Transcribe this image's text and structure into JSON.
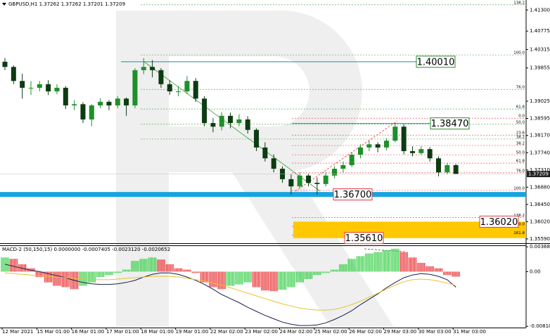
{
  "chart_data": [
    {
      "type": "candlestick",
      "title": "GBPUSD,H1  1.37262 1.37262 1.37201 1.37209",
      "categories": [
        "12 Mar 2021",
        null,
        null,
        null,
        "15 Mar 01:00",
        null,
        null,
        null,
        "16 Mar 01:00",
        null,
        null,
        null,
        "17 Mar 01:00",
        null,
        null,
        null,
        "18 Mar 01:00",
        null,
        null,
        null,
        "19 Mar 01:00",
        null,
        null,
        null,
        "22 Mar 02:00",
        null,
        null,
        null,
        "23 Mar 02:00",
        null,
        null,
        null,
        "24 Mar 02:00",
        null,
        null,
        null,
        "25 Mar 02:00",
        null,
        null,
        null,
        "26 Mar 02:00",
        null,
        null,
        null,
        "29 Mar 03:00",
        null,
        null,
        null,
        "30 Mar 03:00",
        null,
        null,
        null,
        "31 Mar 03:00"
      ],
      "open": [
        1.4001,
        1.3988,
        1.3953,
        1.3936,
        1.3936,
        1.3945,
        1.3927,
        1.3936,
        1.3892,
        1.3895,
        1.3857,
        1.3892,
        1.3901,
        1.3892,
        1.3909,
        1.3892,
        1.398,
        1.3988,
        1.398,
        1.3945,
        1.3927,
        1.3927,
        1.3953,
        1.3909,
        1.3848,
        1.3839,
        1.3866,
        1.3848,
        1.3857,
        1.3831,
        1.3787,
        1.376,
        1.3734,
        1.3708,
        1.369,
        1.3717,
        1.3699,
        1.3696,
        1.3717,
        1.3734,
        1.3743,
        1.3769,
        1.3787,
        1.3795,
        1.3787,
        1.3804,
        1.3839,
        1.3778,
        1.3773,
        1.3783,
        1.376,
        1.3725,
        1.3743
      ],
      "high": [
        1.401,
        1.3992,
        1.3971,
        1.3953,
        1.3953,
        1.3955,
        1.3945,
        1.394,
        1.3905,
        1.39,
        1.3895,
        1.391,
        1.3905,
        1.3915,
        1.3912,
        1.3985,
        1.401,
        1.4005,
        1.3985,
        1.3955,
        1.394,
        1.3965,
        1.396,
        1.3915,
        1.386,
        1.3875,
        1.3874,
        1.387,
        1.3865,
        1.3835,
        1.38,
        1.377,
        1.374,
        1.372,
        1.3725,
        1.3722,
        1.3712,
        1.3725,
        1.374,
        1.3752,
        1.3775,
        1.3795,
        1.3804,
        1.38,
        1.381,
        1.3848,
        1.3845,
        1.379,
        1.379,
        1.3788,
        1.3765,
        1.3748,
        1.3746
      ],
      "low": [
        1.398,
        1.3945,
        1.3909,
        1.3918,
        1.3927,
        1.3918,
        1.392,
        1.3883,
        1.388,
        1.3848,
        1.384,
        1.3885,
        1.388,
        1.3885,
        1.3866,
        1.3885,
        1.397,
        1.3962,
        1.3936,
        1.3918,
        1.3915,
        1.392,
        1.3901,
        1.384,
        1.3825,
        1.383,
        1.3835,
        1.384,
        1.3822,
        1.3778,
        1.3752,
        1.3725,
        1.3699,
        1.367,
        1.3685,
        1.369,
        1.367,
        1.369,
        1.371,
        1.3725,
        1.3738,
        1.376,
        1.3778,
        1.3775,
        1.378,
        1.38,
        1.377,
        1.3765,
        1.3768,
        1.3752,
        1.3715,
        1.372,
        1.37201
      ],
      "close": [
        1.3988,
        1.3953,
        1.3936,
        1.3936,
        1.3945,
        1.3927,
        1.3936,
        1.3892,
        1.3895,
        1.3857,
        1.3892,
        1.3901,
        1.3892,
        1.3909,
        1.3892,
        1.398,
        1.3988,
        1.398,
        1.3945,
        1.3927,
        1.3927,
        1.3953,
        1.3909,
        1.3848,
        1.3839,
        1.3866,
        1.3848,
        1.3857,
        1.3831,
        1.3787,
        1.376,
        1.3734,
        1.3708,
        1.369,
        1.3717,
        1.3699,
        1.3696,
        1.3717,
        1.3734,
        1.3743,
        1.3769,
        1.3787,
        1.3795,
        1.3787,
        1.3804,
        1.3839,
        1.3778,
        1.3773,
        1.3783,
        1.376,
        1.3725,
        1.3743,
        1.37209
      ],
      "up_color": "#1f8f2a",
      "down_color": "#0d3b12",
      "ylim": [
        1.355,
        1.4155
      ],
      "yticks": [
        {
          "value": 1.413,
          "label": "1.41300"
        },
        {
          "value": 1.40775,
          "label": "1.40775"
        },
        {
          "value": 1.40315,
          "label": "1.40315"
        },
        {
          "value": 1.39855,
          "label": "1.39855"
        },
        {
          "value": 1.39025,
          "label": "1.39025"
        },
        {
          "value": 1.38595,
          "label": "1.38595"
        },
        {
          "value": 1.3817,
          "label": "1.38170"
        },
        {
          "value": 1.3774,
          "label": "1.37740"
        },
        {
          "value": 1.3731,
          "label": "1.37310"
        },
        {
          "value": 1.3688,
          "label": "1.36880"
        },
        {
          "value": 1.3645,
          "label": "1.36450"
        },
        {
          "value": 1.3602,
          "label": "1.36020"
        },
        {
          "value": 1.3559,
          "label": "1.35590"
        }
      ],
      "last_price": 1.37209,
      "fib_levels": [
        {
          "color": "#3c9a3c",
          "levels": [
            {
              "label": "138.2",
              "value": 1.4143
            },
            {
              "label": "100.0",
              "value": 1.4018
            },
            {
              "label": "76.0",
              "value": 1.3932
            },
            {
              "label": "61.8",
              "value": 1.3883
            },
            {
              "label": "50.0",
              "value": 1.3845
            },
            {
              "label": "38.2",
              "value": 1.3808
            }
          ]
        },
        {
          "color": "#e0393e",
          "levels": [
            {
              "label": "0.0",
              "value": 1.386
            },
            {
              "label": "23.6",
              "value": 1.3818
            },
            {
              "label": "38.2",
              "value": 1.3792
            },
            {
              "label": "50.0",
              "value": 1.3769
            },
            {
              "label": "61.8",
              "value": 1.3748
            },
            {
              "label": "76.0",
              "value": 1.3724
            },
            {
              "label": "100.0",
              "value": 1.368
            },
            {
              "label": "138.2",
              "value": 1.3612
            },
            {
              "label": "150.0",
              "value": 1.359
            },
            {
              "label": "161.8",
              "value": 1.3568
            }
          ]
        }
      ],
      "price_labels": [
        {
          "label": "1.40010",
          "value": 1.4001,
          "color": "#2e8b2e"
        },
        {
          "label": "1.38470",
          "value": 1.3847,
          "color": "#2e8b2e"
        },
        {
          "label": "1.36700",
          "value": 1.367,
          "color": "#e0393e"
        },
        {
          "label": "1.36020",
          "value": 1.3602,
          "color": "#e0393e"
        },
        {
          "label": "1.35610",
          "value": 1.3561,
          "color": "#e0393e"
        }
      ]
    },
    {
      "type": "macd",
      "title": "MACD-2 (50,150,15) 0.0000000 -0.0007405 -0.0023120 -0.0020652",
      "values": [
        0.0021,
        0.0019,
        0.0011,
        0.0005,
        -0.0008,
        -0.0016,
        -0.0021,
        -0.0023,
        -0.0026,
        -0.0021,
        -0.0016,
        -0.0008,
        -0.0005,
        -0.0002,
        0.0003,
        0.0016,
        0.0019,
        0.0021,
        0.0018,
        0.0011,
        0.0005,
        0.0003,
        -0.0002,
        -0.0016,
        -0.0023,
        -0.0026,
        -0.0021,
        -0.0019,
        -0.0016,
        -0.0023,
        -0.0028,
        -0.0029,
        -0.0027,
        -0.0023,
        -0.0016,
        -0.0011,
        -0.0005,
        -0.0002,
        0.0003,
        0.0011,
        0.0019,
        0.0023,
        0.0027,
        0.0029,
        0.0032,
        0.0034,
        0.0029,
        0.0021,
        0.0013,
        0.0008,
        0.0005,
        -0.0005,
        -0.0007405
      ],
      "up_color": "#2ecc40",
      "down_color": "#e8282b",
      "lines": [
        {
          "color": "#1a1f4d",
          "values": [
            0.0011,
            0.0008,
            0.0005,
            0.0002,
            0,
            -0.0003,
            -0.0006,
            -0.0009,
            -0.0013,
            -0.0016,
            -0.0018,
            -0.0019,
            -0.0019,
            -0.0018,
            -0.0016,
            -0.0013,
            -0.0008,
            -0.0004,
            -0.0002,
            -0.0002,
            -0.0004,
            -0.0008,
            -0.0013,
            -0.0019,
            -0.0026,
            -0.0034,
            -0.004,
            -0.0046,
            -0.0053,
            -0.0059,
            -0.0065,
            -0.007,
            -0.0075,
            -0.0078,
            -0.008,
            -0.008,
            -0.0079,
            -0.0076,
            -0.0071,
            -0.0065,
            -0.0058,
            -0.0049,
            -0.0041,
            -0.0033,
            -0.0024,
            -0.0016,
            -0.0009,
            -0.0005,
            -0.0003,
            -0.0004,
            -0.0007,
            -0.0012,
            -0.002312
          ]
        },
        {
          "color": "#e8c22c",
          "values": [
            -0.0002,
            -0.0003,
            -0.0004,
            -0.0005,
            -0.0006,
            -0.0007,
            -0.0008,
            -0.0009,
            -0.001,
            -0.0011,
            -0.0012,
            -0.0012,
            -0.0012,
            -0.0011,
            -0.001,
            -0.0009,
            -0.0008,
            -0.0007,
            -0.0007,
            -0.0007,
            -0.0008,
            -0.001,
            -0.0012,
            -0.0014,
            -0.0017,
            -0.002,
            -0.0024,
            -0.0028,
            -0.0032,
            -0.0036,
            -0.004,
            -0.0044,
            -0.0048,
            -0.0051,
            -0.0054,
            -0.0056,
            -0.0057,
            -0.0057,
            -0.0056,
            -0.0053,
            -0.0049,
            -0.0044,
            -0.0038,
            -0.0032,
            -0.0026,
            -0.002,
            -0.0015,
            -0.0012,
            -0.0011,
            -0.0012,
            -0.0014,
            -0.0017,
            -0.0020652
          ]
        }
      ],
      "ylim": [
        -0.0083,
        0.0038
      ],
      "yticks": [
        0.0036809,
        {
          "value": 0,
          "label": "0.00"
        },
        -0.0081084
      ]
    }
  ]
}
